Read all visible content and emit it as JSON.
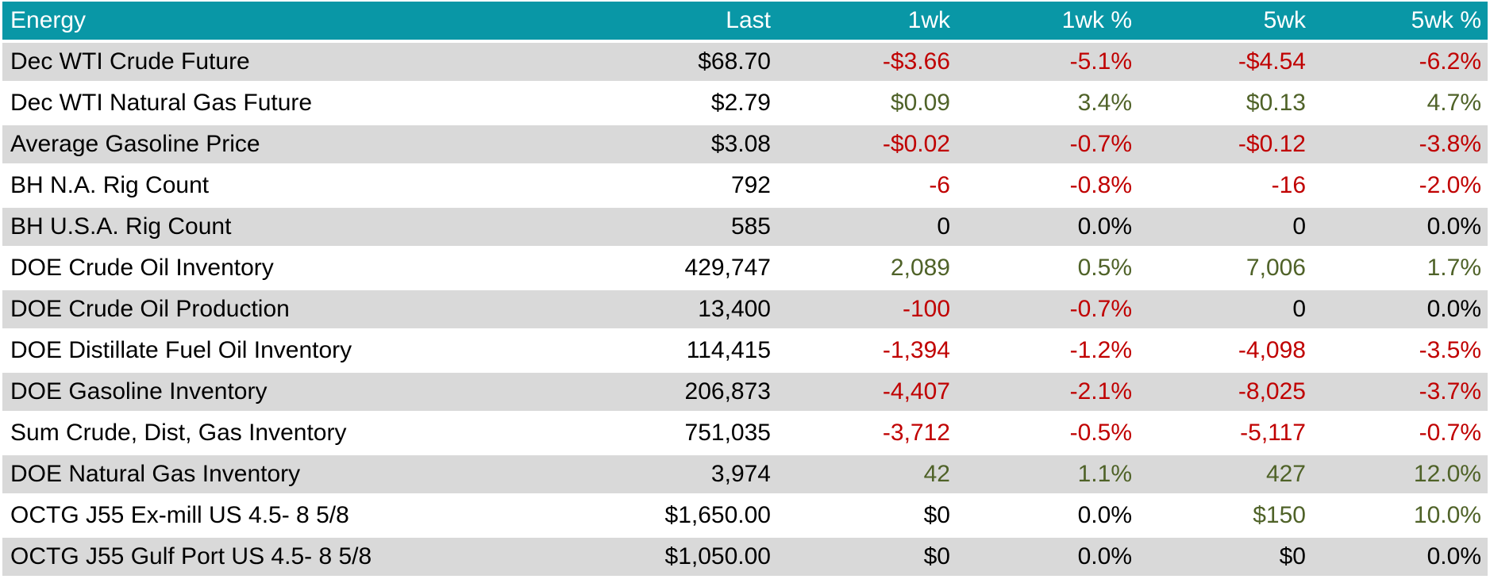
{
  "colors": {
    "header_bg": "#0997A6",
    "header_text": "#FFFFFF",
    "alt_row_bg": "#D9D9D9",
    "row_bg": "#FFFFFF",
    "negative_text": "#C00000",
    "positive_text": "#4F6228",
    "neutral_text": "#000000"
  },
  "chart_data": {
    "type": "table",
    "title": "Energy",
    "columns": [
      "Energy",
      "Last",
      "1wk",
      "1wk %",
      "5wk",
      "5wk %"
    ],
    "rows": [
      [
        "Dec WTI Crude Future",
        "$68.70",
        "-$3.66",
        "-5.1%",
        "-$4.54",
        "-6.2%"
      ],
      [
        "Dec WTI Natural Gas Future",
        "$2.79",
        "$0.09",
        "3.4%",
        "$0.13",
        "4.7%"
      ],
      [
        "Average Gasoline Price",
        "$3.08",
        "-$0.02",
        "-0.7%",
        "-$0.12",
        "-3.8%"
      ],
      [
        "BH N.A. Rig Count",
        "792",
        "-6",
        "-0.8%",
        "-16",
        "-2.0%"
      ],
      [
        "BH U.S.A. Rig Count",
        "585",
        "0",
        "0.0%",
        "0",
        "0.0%"
      ],
      [
        "DOE Crude Oil Inventory",
        "429,747",
        "2,089",
        "0.5%",
        "7,006",
        "1.7%"
      ],
      [
        "DOE Crude Oil Production",
        "13,400",
        "-100",
        "-0.7%",
        "0",
        "0.0%"
      ],
      [
        "DOE Distillate Fuel Oil Inventory",
        "114,415",
        "-1,394",
        "-1.2%",
        "-4,098",
        "-3.5%"
      ],
      [
        "DOE Gasoline Inventory",
        "206,873",
        "-4,407",
        "-2.1%",
        "-8,025",
        "-3.7%"
      ],
      [
        "Sum Crude, Dist, Gas Inventory",
        "751,035",
        "-3,712",
        "-0.5%",
        "-5,117",
        "-0.7%"
      ],
      [
        "DOE Natural Gas Inventory",
        "3,974",
        "42",
        "1.1%",
        "427",
        "12.0%"
      ],
      [
        "OCTG J55 Ex-mill US 4.5- 8 5/8",
        "$1,650.00",
        "$0",
        "0.0%",
        "$150",
        "10.0%"
      ],
      [
        "OCTG J55 Gulf Port US 4.5- 8 5/8",
        "$1,050.00",
        "$0",
        "0.0%",
        "$0",
        "0.0%"
      ]
    ]
  }
}
